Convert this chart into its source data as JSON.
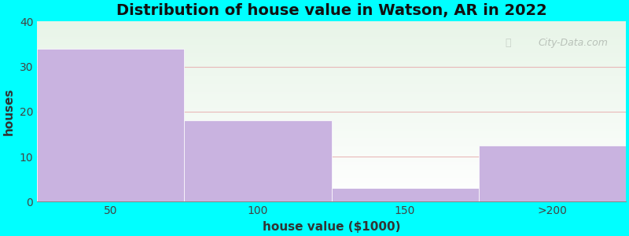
{
  "title": "Distribution of house value in Watson, AR in 2022",
  "xlabel": "house value ($1000)",
  "ylabel": "houses",
  "categories": [
    "50",
    "100",
    "150",
    ">200"
  ],
  "values": [
    34,
    18,
    3,
    12.5
  ],
  "bar_color": "#c9b3e0",
  "bar_edgecolor": "#ffffff",
  "ylim": [
    0,
    40
  ],
  "yticks": [
    0,
    10,
    20,
    30,
    40
  ],
  "background_outer": "#00ffff",
  "background_plot_top": "#e8f5e8",
  "background_plot_bottom": "#f8fff8",
  "grid_color": "#e8b8b8",
  "title_fontsize": 14,
  "axis_label_fontsize": 11,
  "tick_fontsize": 10,
  "watermark_text": "City-Data.com",
  "watermark_color": "#b0b8b0"
}
